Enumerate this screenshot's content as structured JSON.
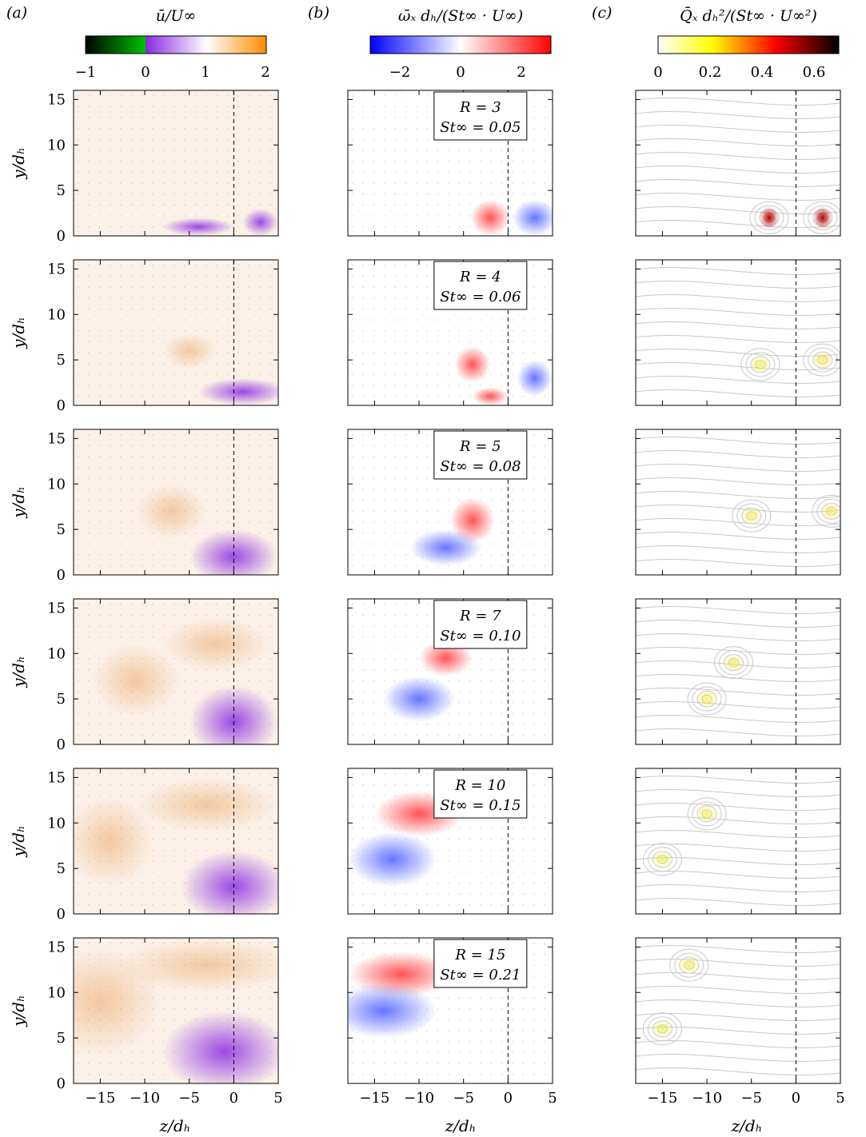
{
  "figure": {
    "columns": [
      {
        "letter": "(a)",
        "colorbar_title": "ū/U∞",
        "colorbar_ticks": [
          "−1",
          "0",
          "1",
          "2"
        ],
        "colorbar_colors": [
          "#000000",
          "#00c000",
          "#8a2be2",
          "#ffffff",
          "#ff8c00"
        ],
        "field": "streamwise-velocity"
      },
      {
        "letter": "(b)",
        "colorbar_title": "ω̄ₓ dₕ/(St∞ · U∞)",
        "colorbar_ticks": [
          "−2",
          "0",
          "2"
        ],
        "colorbar_colors": [
          "#0000ff",
          "#ffffff",
          "#ff0000"
        ],
        "field": "streamwise-vorticity"
      },
      {
        "letter": "(c)",
        "colorbar_title": "Q̄ₓ dₕ²/(St∞ · U∞²)",
        "colorbar_ticks": [
          "0",
          "0.2",
          "0.4",
          "0.6"
        ],
        "colorbar_colors": [
          "#ffffff",
          "#ffff00",
          "#ff0000",
          "#000000"
        ],
        "field": "q-criterion-streamlines"
      }
    ],
    "y_axis_label": "y/dₕ",
    "x_axis_label": "z/dₕ",
    "y_ticks": [
      "0",
      "5",
      "10",
      "15"
    ],
    "x_ticks": [
      "−15",
      "−10",
      "−5",
      "0",
      "5"
    ],
    "rows": [
      {
        "r_label": "R = 3",
        "st_label": "St∞ = 0.05"
      },
      {
        "r_label": "R = 4",
        "st_label": "St∞ = 0.06"
      },
      {
        "r_label": "R = 5",
        "st_label": "St∞ = 0.08"
      },
      {
        "r_label": "R = 7",
        "st_label": "St∞ = 0.10"
      },
      {
        "r_label": "R = 10",
        "st_label": "St∞ = 0.15"
      },
      {
        "r_label": "R = 15",
        "st_label": "St∞ = 0.21"
      }
    ]
  }
}
